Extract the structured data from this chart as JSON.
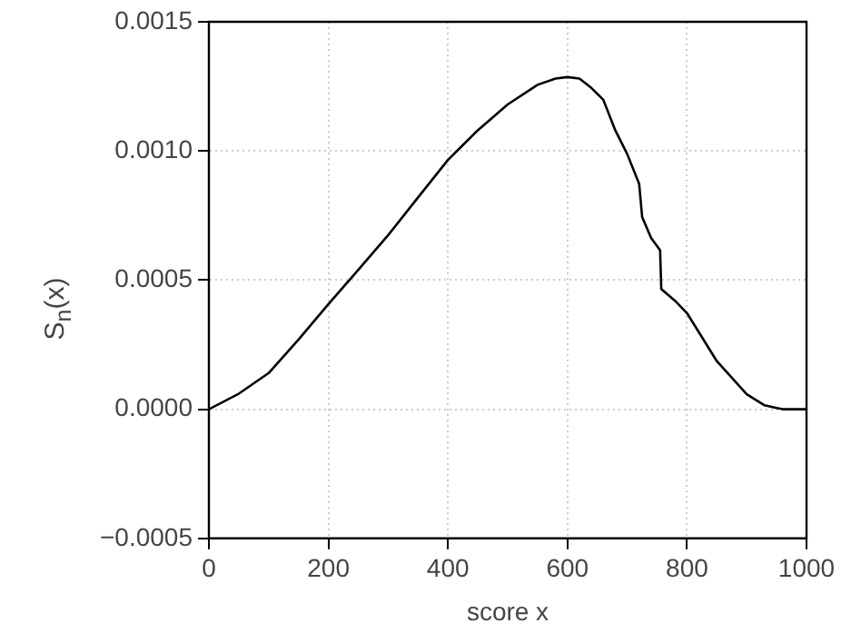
{
  "chart_data": {
    "type": "line",
    "xlabel": "score x",
    "ylabel": "S$_{n}$(x)",
    "series": [
      {
        "color": "#000000",
        "x": [
          0,
          50,
          100,
          150,
          200,
          250,
          300,
          350,
          400,
          450,
          500,
          550,
          580,
          600,
          620,
          640,
          660,
          680,
          700,
          720,
          725,
          740,
          755,
          757,
          780,
          800,
          850,
          900,
          930,
          950,
          960,
          1000
        ],
        "values": [
          0,
          6e-05,
          0.00014,
          0.00027,
          0.000407,
          0.00054,
          0.000674,
          0.00082,
          0.000965,
          0.00108,
          0.00118,
          0.001256,
          0.00128,
          0.001286,
          0.00128,
          0.001244,
          0.001198,
          0.00108,
          0.000988,
          0.000872,
          0.000744,
          0.000663,
          0.000616,
          0.000465,
          0.00042,
          0.000372,
          0.000186,
          5.8e-05,
          1.5e-05,
          5e-06,
          0,
          0
        ]
      }
    ],
    "xlim": [
      0,
      1000
    ],
    "xticks": [
      0,
      200,
      400,
      600,
      800,
      1000
    ],
    "ylim": [
      -0.0005,
      0.0015
    ],
    "yticks": [
      {
        "value": -0.0005,
        "label": "−0.0005"
      },
      {
        "value": 0,
        "label": "0.0000"
      },
      {
        "value": 0.0005,
        "label": "0.0005"
      },
      {
        "value": 0.001,
        "label": "0.0010"
      },
      {
        "value": 0.0015,
        "label": "0.0015"
      }
    ],
    "grid": true,
    "legend": false,
    "marker": "none",
    "line_style": "solid"
  }
}
